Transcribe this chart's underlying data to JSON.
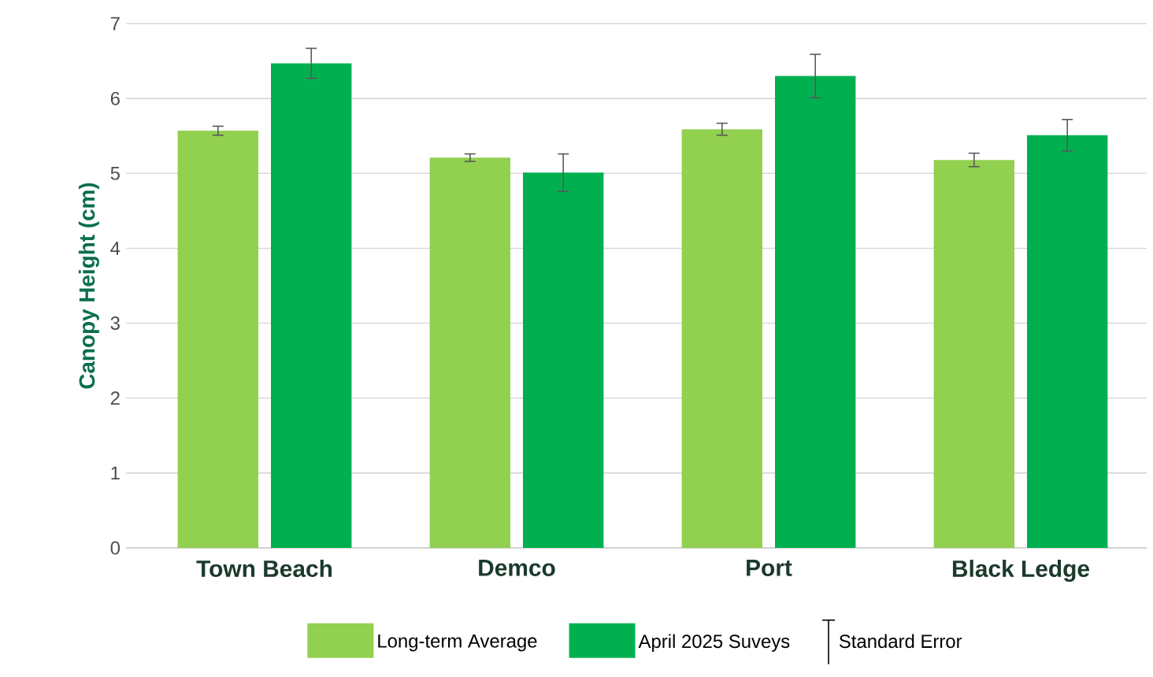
{
  "chart_data": {
    "type": "bar",
    "ylabel": "Canopy Height (cm)",
    "categories": [
      "Town Beach",
      "Demco",
      "Port",
      "Black Ledge"
    ],
    "series": [
      {
        "name": "Long-term Average",
        "color": "#92d050",
        "values": [
          5.57,
          5.21,
          5.59,
          5.18
        ],
        "errors": [
          0.06,
          0.05,
          0.08,
          0.09
        ]
      },
      {
        "name": "April 2025 Suveys",
        "color": "#00b050",
        "values": [
          6.47,
          5.01,
          6.3,
          5.51
        ],
        "errors": [
          0.2,
          0.25,
          0.29,
          0.21
        ]
      }
    ],
    "annotations": [
      "Standard Error"
    ],
    "ylim": [
      0,
      7
    ],
    "yticks": [
      0,
      1,
      2,
      3,
      4,
      5,
      6,
      7
    ],
    "grid": "y",
    "legend": "bottom"
  }
}
